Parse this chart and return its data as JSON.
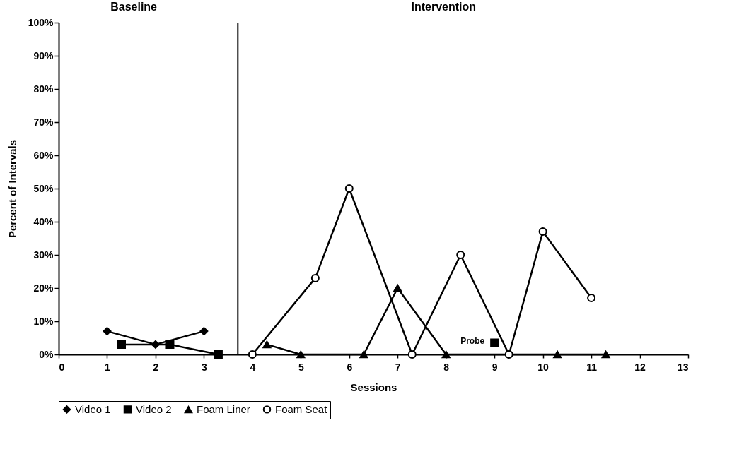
{
  "chart_data": {
    "type": "line",
    "xlabel": "Sessions",
    "ylabel": "Percent of Intervals",
    "xlim": [
      0,
      13
    ],
    "xticks": [
      0,
      1,
      2,
      3,
      4,
      5,
      6,
      7,
      8,
      9,
      10,
      11,
      12,
      13
    ],
    "ylim": [
      0,
      100
    ],
    "yticks": [
      {
        "value": 0,
        "label": "0%"
      },
      {
        "value": 10,
        "label": "10%"
      },
      {
        "value": 20,
        "label": "20%"
      },
      {
        "value": 30,
        "label": "30%"
      },
      {
        "value": 40,
        "label": "40%"
      },
      {
        "value": 50,
        "label": "50%"
      },
      {
        "value": 60,
        "label": "60%"
      },
      {
        "value": 70,
        "label": "70%"
      },
      {
        "value": 80,
        "label": "80%"
      },
      {
        "value": 90,
        "label": "90%"
      },
      {
        "value": 100,
        "label": "100%"
      }
    ],
    "grid": false,
    "legend": "bottom",
    "line_style": "solid",
    "series": [
      {
        "name": "Video 1",
        "color": "#000000",
        "marker": "diamond",
        "x": [
          1,
          2,
          3
        ],
        "values": [
          7,
          3,
          7
        ]
      },
      {
        "name": "Video 2",
        "color": "#000000",
        "marker": "square",
        "x": [
          1.3,
          2.3,
          3.3
        ],
        "values": [
          3,
          3,
          0
        ]
      },
      {
        "name": "Foam Liner",
        "color": "#000000",
        "marker": "triangle",
        "x": [
          4.3,
          5,
          6.3,
          7,
          8,
          10.3,
          11.3
        ],
        "values": [
          3,
          0,
          0,
          20,
          0,
          0,
          0
        ]
      },
      {
        "name": "Foam Seat",
        "color": "#000000",
        "marker": "circle",
        "x": [
          4,
          5.3,
          6,
          7.3,
          8.3,
          9.3,
          10,
          11
        ],
        "values": [
          0,
          23,
          50,
          0,
          30,
          0,
          37,
          17
        ]
      },
      {
        "type": "scatter",
        "color": "#000000",
        "marker": "square",
        "x": [
          9
        ],
        "values": [
          3.5
        ]
      }
    ],
    "ref_lines": [
      {
        "axis": "x",
        "value": 3.7,
        "color": "#000000"
      }
    ],
    "annotations": [
      "Baseline",
      "Intervention",
      {
        "text": "Probe",
        "x": 9,
        "y": 3.5
      }
    ]
  }
}
